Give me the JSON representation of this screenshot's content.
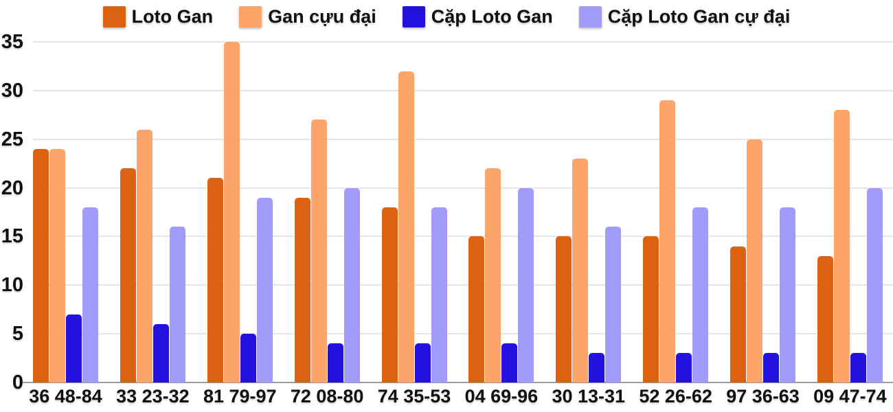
{
  "colors": {
    "loto_gan": "#DC6212",
    "gan_cuu_dai": "#FCA46A",
    "cap_loto_gan": "#2311DE",
    "cap_loto_gan_cu_dai": "#A19BFA",
    "gridline": "#E6E6E6",
    "baseline": "#999999",
    "text": "#111111",
    "background": "#FFFFFF"
  },
  "legend": {
    "position": "top",
    "items": [
      {
        "label": "Loto Gan",
        "color": "#DC6212"
      },
      {
        "label": "Gan cựu đại",
        "color": "#FCA46A"
      },
      {
        "label": "Cặp Loto Gan",
        "color": "#2311DE"
      },
      {
        "label": "Cặp Loto Gan cự đại",
        "color": "#A19BFA"
      }
    ]
  },
  "chart_data": {
    "type": "bar",
    "title": "",
    "xlabel": "",
    "ylabel": "",
    "categories": [
      "36 48-84",
      "33 23-32",
      "81 79-97",
      "72 08-80",
      "74 35-53",
      "04 69-96",
      "30 13-31",
      "52 26-62",
      "97 36-63",
      "09 47-74"
    ],
    "series": [
      {
        "name": "Loto Gan",
        "color": "#DC6212",
        "values": [
          24,
          22,
          21,
          19,
          18,
          15,
          15,
          15,
          14,
          13
        ]
      },
      {
        "name": "Gan cựu đại",
        "color": "#FCA46A",
        "values": [
          24,
          26,
          35,
          27,
          32,
          22,
          23,
          29,
          25,
          28
        ]
      },
      {
        "name": "Cặp Loto Gan",
        "color": "#2311DE",
        "values": [
          7,
          6,
          5,
          4,
          4,
          4,
          3,
          3,
          3,
          3
        ]
      },
      {
        "name": "Cặp Loto Gan cự đại",
        "color": "#A19BFA",
        "values": [
          18,
          16,
          19,
          20,
          18,
          20,
          16,
          18,
          18,
          20
        ]
      }
    ],
    "ylim": [
      0,
      35
    ],
    "yticks": [
      0,
      5,
      10,
      15,
      20,
      25,
      30,
      35
    ],
    "grid": true,
    "legend_position": "top"
  }
}
